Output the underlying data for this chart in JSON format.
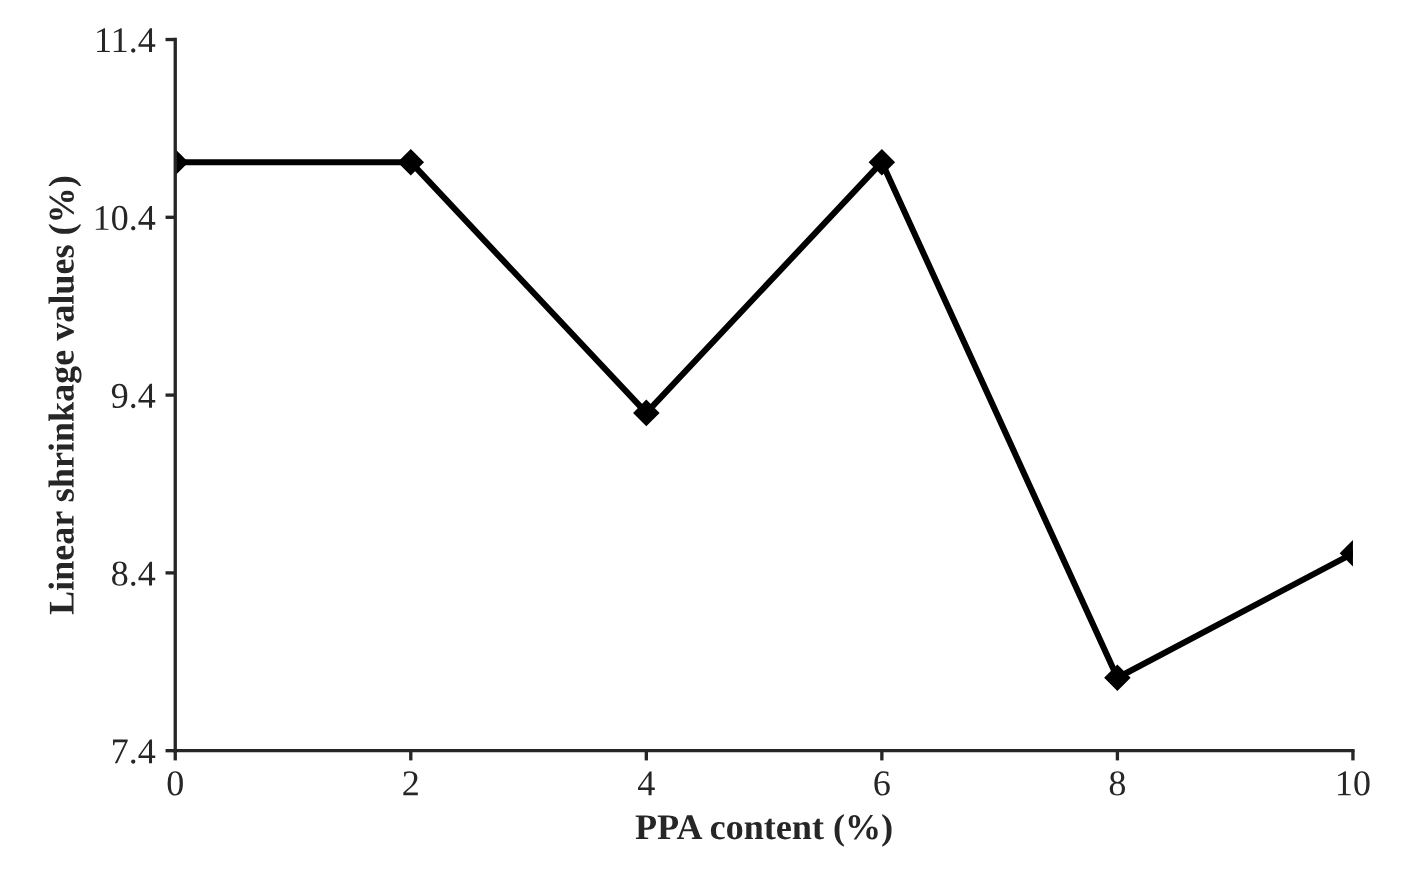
{
  "chart_data": {
    "type": "line",
    "xlabel": "PPA content (%)",
    "ylabel": "Linear shrinkage values (%)",
    "x": [
      0,
      2,
      4,
      6,
      8,
      10
    ],
    "series": [
      {
        "color": "#000000",
        "values": [
          10.71,
          10.71,
          9.3,
          10.71,
          7.81,
          8.51
        ]
      }
    ],
    "xlim": [
      0,
      10
    ],
    "xticks": [
      0,
      2,
      4,
      6,
      8,
      10
    ],
    "ylim": [
      7.4,
      11.4
    ],
    "yticks": [
      7.4,
      8.4,
      9.4,
      10.4,
      11.4
    ],
    "grid": false,
    "legend": false,
    "marker": "diamond",
    "line_style": "solid"
  }
}
